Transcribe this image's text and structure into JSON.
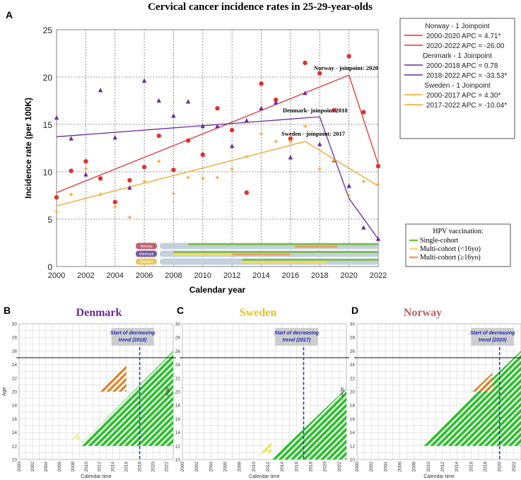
{
  "title": "Cervical cancer incidence rates in 25-29-year-olds",
  "colors": {
    "norway": "#e23030",
    "denmark": "#6a2a9a",
    "sweden": "#f0a628",
    "single": "#78be3c",
    "multi_lt16": "#f4da6a",
    "multi_ge16": "#f09a60",
    "bar_bg": "#c3d0dc",
    "green_stripe": "#18c018",
    "yellow_stripe": "#e4e440",
    "orange_stripe": "#e07818"
  },
  "chart_data": [
    {
      "panel": "A",
      "type": "scatter",
      "xlabel": "Calendar year",
      "ylabel": "Incidence rate (per 100K)",
      "xlim": [
        2000,
        2022
      ],
      "ylim": [
        0,
        25
      ],
      "xticks": [
        2000,
        2002,
        2004,
        2006,
        2008,
        2010,
        2012,
        2014,
        2016,
        2018,
        2020,
        2022
      ],
      "yticks": [
        0,
        5,
        10,
        15,
        20,
        25
      ],
      "grid": true,
      "series": [
        {
          "name": "Norway",
          "color": "#e23030",
          "marker": "circle",
          "x": [
            2000,
            2001,
            2002,
            2003,
            2004,
            2005,
            2006,
            2007,
            2008,
            2009,
            2010,
            2011,
            2012,
            2013,
            2014,
            2015,
            2016,
            2017,
            2018,
            2019,
            2020,
            2021,
            2022
          ],
          "y": [
            7.3,
            10.1,
            11.1,
            9.3,
            6.8,
            9.1,
            10.5,
            13.8,
            10.2,
            13.3,
            11.8,
            16.7,
            14.4,
            7.8,
            19.3,
            17.6,
            13.5,
            21.5,
            20.4,
            16.5,
            22.2,
            16.3,
            10.6
          ],
          "fit_x": [
            2000,
            2020,
            2022
          ],
          "fit_y": [
            7.8,
            20.2,
            10.8
          ]
        },
        {
          "name": "Denmark",
          "color": "#6a2a9a",
          "marker": "triangle",
          "x": [
            2000,
            2001,
            2002,
            2003,
            2004,
            2005,
            2006,
            2007,
            2008,
            2009,
            2010,
            2011,
            2012,
            2013,
            2014,
            2015,
            2016,
            2017,
            2018,
            2019,
            2020,
            2021,
            2022
          ],
          "y": [
            15.7,
            13.5,
            9.7,
            18.6,
            13.6,
            8.3,
            19.6,
            17.5,
            15.9,
            17.4,
            14.8,
            14.8,
            12.7,
            15.4,
            16.7,
            17.3,
            11.5,
            18.3,
            12.9,
            11.2,
            8.5,
            4.1,
            2.9
          ],
          "fit_x": [
            2000,
            2018,
            2020,
            2022
          ],
          "fit_y": [
            13.7,
            15.8,
            7.2,
            2.9
          ]
        },
        {
          "name": "Sweden",
          "color": "#f0a628",
          "marker": "plus",
          "x": [
            2000,
            2001,
            2002,
            2003,
            2004,
            2005,
            2006,
            2007,
            2008,
            2009,
            2010,
            2011,
            2012,
            2013,
            2014,
            2015,
            2016,
            2017,
            2018,
            2019,
            2020,
            2021,
            2022
          ],
          "y": [
            5.8,
            7.6,
            10.3,
            7.6,
            6.3,
            5.2,
            9.0,
            11.1,
            7.7,
            9.4,
            9.3,
            9.4,
            10.3,
            11.6,
            14.0,
            13.2,
            13.2,
            14.8,
            10.3,
            11.2,
            7.5,
            9.0,
            8.7
          ],
          "fit_x": [
            2000,
            2017,
            2022
          ],
          "fit_y": [
            6.4,
            13.2,
            8.5
          ]
        }
      ],
      "annotations": {
        "norway": "Norway - joinpoint: 2020",
        "denmark": "Denmark- joinpoint 2018",
        "sweden": "Sweden - joinpoint: 2017"
      },
      "legend": {
        "position": "right",
        "groups": [
          {
            "header": "Norway - 1 Joinpoint",
            "lines": [
              "2000-2020 APC =   4.71*",
              "2020-2022 APC = -26.00"
            ],
            "colors": [
              "#e23030",
              "#e23030"
            ]
          },
          {
            "header": "Denmark - 1 Joinpoint",
            "lines": [
              "2000-2018 APC =   0.78",
              "2018-2022 APC = -33.53*"
            ],
            "colors": [
              "#6a2a9a",
              "#6a2a9a"
            ]
          },
          {
            "header": "Sweden - 1 Joinpoint",
            "lines": [
              "2000-2017 APC =   4.30*",
              "2017-2022 APC = -10.04*"
            ],
            "colors": [
              "#f0a628",
              "#f0a628"
            ]
          }
        ]
      },
      "vaccination_inset": {
        "labels": [
          "Norway",
          "Denmark",
          "Sweden"
        ],
        "label_colors": [
          "#c06070",
          "#7a5aa0",
          "#e8c864"
        ],
        "bars": [
          {
            "country": "Norway",
            "cohorts": [
              {
                "kind": "single",
                "x": [
                  2009,
                  2022
                ]
              },
              {
                "kind": "multi_ge16",
                "x": [
                  2016.3,
                  2019.2
                ]
              }
            ]
          },
          {
            "country": "Denmark",
            "cohorts": [
              {
                "kind": "single",
                "x": [
                  2008,
                  2022
                ]
              },
              {
                "kind": "multi_lt16",
                "x": [
                  2008,
                  2012.5
                ]
              },
              {
                "kind": "multi_ge16",
                "x": [
                  2012,
                  2016
                ]
              }
            ]
          },
          {
            "country": "Sweden",
            "cohorts": [
              {
                "kind": "single",
                "x": [
                  2012.7,
                  2022
                ]
              },
              {
                "kind": "multi_lt16",
                "x": [
                  2012.6,
                  2018.5
                ]
              }
            ]
          }
        ]
      },
      "vaccination_legend": {
        "title": "HPV vaccination:",
        "items": [
          "Single-cohort",
          "Multi-cohort (<16yo)",
          "Multi-cohort (≥16yo)"
        ]
      }
    },
    {
      "panel": "B",
      "type": "lexis",
      "title": "Denmark",
      "title_color": "#6a2a9a",
      "xlabel": "Calendar time",
      "ylabel": "Age",
      "xlim": [
        2000,
        2023
      ],
      "ylim": [
        10,
        30
      ],
      "xticks": [
        2000,
        2002,
        2004,
        2006,
        2008,
        2010,
        2012,
        2014,
        2016,
        2018,
        2020,
        2022
      ],
      "yticks": [
        10,
        12,
        14,
        16,
        18,
        20,
        22,
        24,
        26,
        28,
        30
      ],
      "hline": 25,
      "trend_year": 2018,
      "trend_label": [
        "Start of decreasing",
        "trend (2018)"
      ],
      "regions": [
        {
          "kind": "green",
          "x0": 2009.0,
          "x1": 2023,
          "age_min": 12,
          "age_max": 30
        },
        {
          "kind": "yellow",
          "x0": 2008.0,
          "x1": 2009.0,
          "age_min": 13,
          "age_max": 22
        },
        {
          "kind": "orange",
          "x0": 2012.0,
          "x1": 2016.0,
          "age_min": 20,
          "age_max": 27
        }
      ]
    },
    {
      "panel": "C",
      "type": "lexis",
      "title": "Sweden",
      "title_color": "#e8c020",
      "xlabel": "Calendar time",
      "ylabel": "Age",
      "xlim": [
        2000,
        2023
      ],
      "ylim": [
        10,
        30
      ],
      "xticks": [
        2000,
        2002,
        2004,
        2006,
        2008,
        2010,
        2012,
        2014,
        2016,
        2018,
        2020,
        2022
      ],
      "yticks": [
        10,
        12,
        14,
        16,
        18,
        20,
        22,
        24,
        26,
        28,
        30
      ],
      "hline": 25,
      "trend_year": 2017,
      "trend_label": [
        "Start of decreasing",
        "trend (2017)"
      ],
      "regions": [
        {
          "kind": "green",
          "x0": 2012.5,
          "x1": 2023,
          "age_min": 10,
          "age_max": 30
        },
        {
          "kind": "yellow",
          "x0": 2011.0,
          "x1": 2012.5,
          "age_min": 11,
          "age_max": 30
        }
      ]
    },
    {
      "panel": "D",
      "type": "lexis",
      "title": "Norway",
      "title_color": "#c06068",
      "xlabel": "Calendar time",
      "ylabel": "Age",
      "xlim": [
        2000,
        2023
      ],
      "ylim": [
        10,
        30
      ],
      "xticks": [
        2000,
        2002,
        2004,
        2006,
        2008,
        2010,
        2012,
        2014,
        2016,
        2018,
        2020,
        2022
      ],
      "yticks": [
        10,
        12,
        14,
        16,
        18,
        20,
        22,
        24,
        26,
        28,
        30
      ],
      "hline": 25,
      "trend_year": 2020,
      "trend_label": [
        "Start of decreasing",
        "trend (2020)"
      ],
      "regions": [
        {
          "kind": "green",
          "x0": 2009.0,
          "x1": 2023,
          "age_min": 12,
          "age_max": 30
        },
        {
          "kind": "orange",
          "x0": 2016.2,
          "x1": 2019.0,
          "age_min": 20,
          "age_max": 27
        }
      ]
    }
  ]
}
